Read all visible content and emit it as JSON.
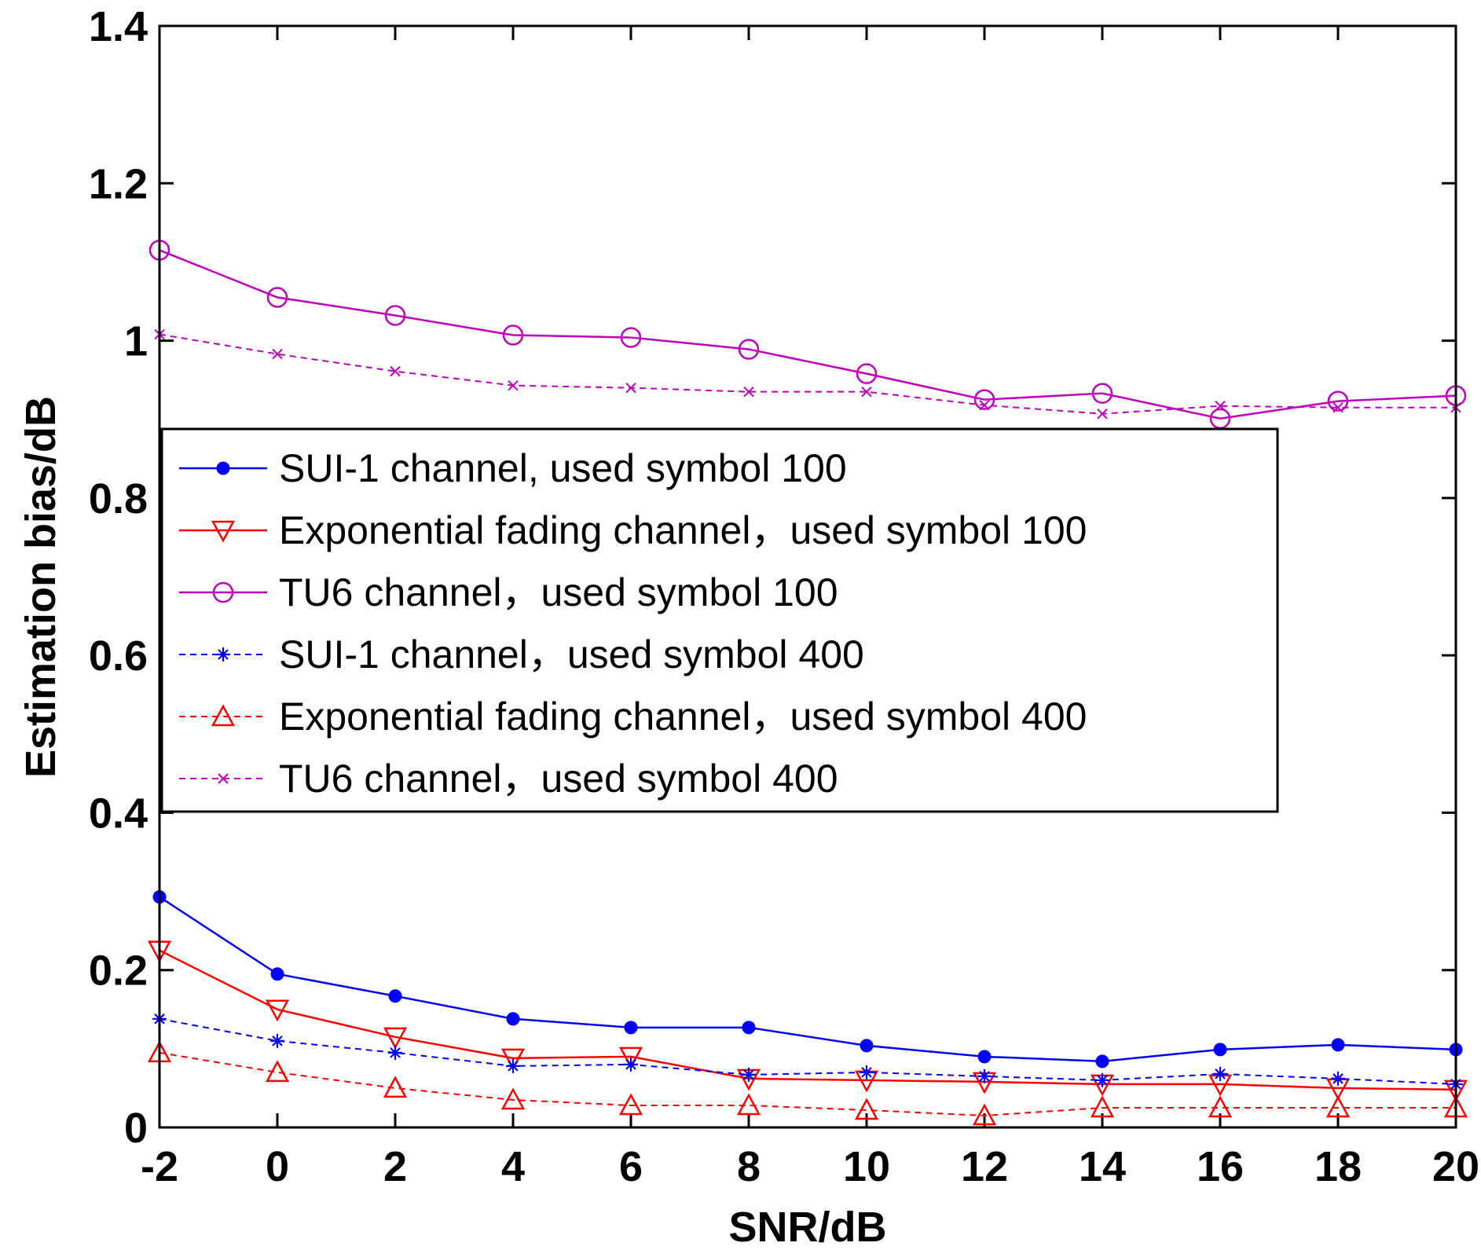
{
  "chart_data": {
    "type": "line",
    "xlabel": "SNR/dB",
    "ylabel": "Estimation bias/dB",
    "xlim": [
      -2,
      20
    ],
    "ylim": [
      0,
      1.4
    ],
    "xticks": [
      "-2",
      "0",
      "2",
      "4",
      "6",
      "8",
      "10",
      "12",
      "14",
      "16",
      "18",
      "20"
    ],
    "yticks": [
      "0",
      "0.2",
      "0.4",
      "0.6",
      "0.8",
      "1",
      "1.2",
      "1.4"
    ],
    "x": [
      -2,
      0,
      2,
      4,
      6,
      8,
      10,
      12,
      14,
      16,
      18,
      20
    ],
    "legend_position": "center-left",
    "grid": false,
    "series": [
      {
        "name": "SUI-1 channel, used symbol 100",
        "color": "#0000ff",
        "line": "solid",
        "marker": "dot",
        "values": [
          0.293,
          0.195,
          0.167,
          0.138,
          0.127,
          0.127,
          0.104,
          0.09,
          0.084,
          0.099,
          0.105,
          0.099
        ]
      },
      {
        "name": "Exponential fading channel，used symbol 100",
        "color": "#ff0000",
        "line": "solid",
        "marker": "triangle-down",
        "values": [
          0.225,
          0.15,
          0.115,
          0.088,
          0.09,
          0.062,
          0.06,
          0.058,
          0.055,
          0.055,
          0.05,
          0.048
        ]
      },
      {
        "name": "TU6 channel，used symbol 100",
        "color": "#bf00bf",
        "line": "solid",
        "marker": "circle",
        "values": [
          1.115,
          1.055,
          1.032,
          1.007,
          1.004,
          0.989,
          0.958,
          0.925,
          0.933,
          0.901,
          0.923,
          0.93
        ]
      },
      {
        "name": "SUI-1 channel，used symbol 400",
        "color": "#0000ff",
        "line": "dashed",
        "marker": "star",
        "values": [
          0.138,
          0.11,
          0.095,
          0.078,
          0.08,
          0.067,
          0.07,
          0.065,
          0.06,
          0.068,
          0.062,
          0.055
        ]
      },
      {
        "name": "Exponential fading channel，used symbol 400",
        "color": "#ff0000",
        "line": "dashed",
        "marker": "triangle-up",
        "values": [
          0.095,
          0.07,
          0.05,
          0.035,
          0.028,
          0.028,
          0.022,
          0.015,
          0.025,
          0.025,
          0.025,
          0.025
        ]
      },
      {
        "name": "TU6 channel，used symbol 400",
        "color": "#bf00bf",
        "line": "dashed",
        "marker": "x",
        "values": [
          1.008,
          0.983,
          0.961,
          0.943,
          0.94,
          0.935,
          0.935,
          0.918,
          0.907,
          0.917,
          0.915,
          0.915
        ]
      }
    ]
  }
}
